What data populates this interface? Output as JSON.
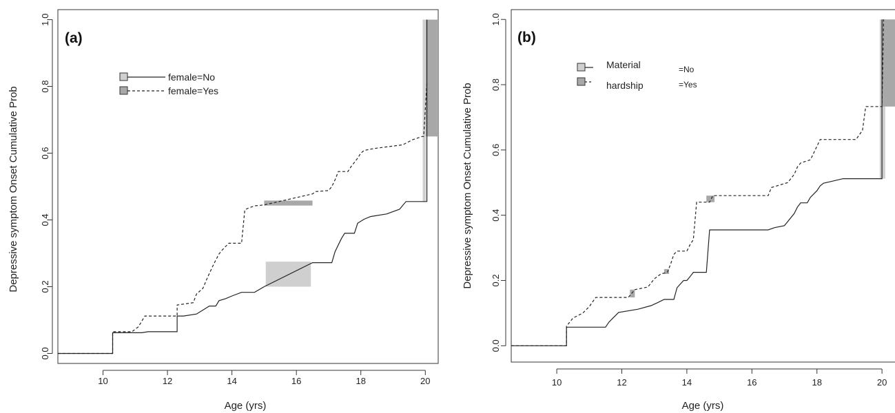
{
  "chart_data": [
    {
      "type": "line",
      "panel_label": "(a)",
      "xlabel": "Age (yrs)",
      "ylabel": "Depressive symptom Onset Cumulative Prob",
      "xlim": [
        8.6,
        20.4
      ],
      "ylim": [
        -0.03,
        1.03
      ],
      "xticks": [
        10,
        12,
        14,
        16,
        18,
        20
      ],
      "yticks": [
        0.0,
        0.2,
        0.4,
        0.6,
        0.8,
        1.0
      ],
      "ytick_labels": [
        "0.0",
        "0.2",
        "0.4",
        "0.6",
        "0.8",
        "1.0"
      ],
      "legend": {
        "placement": "top-left",
        "labels": [
          "female=No",
          "female=Yes"
        ]
      },
      "colors": {
        "ci_no": "#cfcfcf",
        "ci_yes": "#a8a8a8",
        "line": "#222222"
      },
      "series": [
        {
          "name": "female=No",
          "style": "solid",
          "x": [
            8.6,
            10.3,
            10.3,
            11.2,
            11.4,
            12.3,
            12.3,
            12.5,
            12.9,
            13.3,
            13.5,
            13.6,
            13.8,
            14.0,
            14.3,
            14.7,
            15.0,
            16.5,
            17.1,
            17.2,
            17.4,
            17.5,
            17.8,
            17.9,
            18.1,
            18.3,
            18.8,
            19.2,
            19.4,
            19.9,
            20.05,
            20.05
          ],
          "y": [
            0.0,
            0.0,
            0.062,
            0.062,
            0.065,
            0.065,
            0.112,
            0.112,
            0.118,
            0.142,
            0.142,
            0.158,
            0.164,
            0.172,
            0.183,
            0.183,
            0.2,
            0.272,
            0.272,
            0.305,
            0.345,
            0.36,
            0.36,
            0.39,
            0.402,
            0.41,
            0.418,
            0.432,
            0.455,
            0.455,
            0.455,
            1.0
          ]
        },
        {
          "name": "female=Yes",
          "style": "dashed",
          "x": [
            8.6,
            10.3,
            10.3,
            10.9,
            11.1,
            11.3,
            12.3,
            12.3,
            12.8,
            12.9,
            13.1,
            13.2,
            13.3,
            13.4,
            13.5,
            13.6,
            13.7,
            13.9,
            14.3,
            14.4,
            14.5,
            14.7,
            15.0,
            16.5,
            16.6,
            17.0,
            17.1,
            17.2,
            17.3,
            17.6,
            17.7,
            17.9,
            18.0,
            18.1,
            18.3,
            18.5,
            19.3,
            19.6,
            19.9,
            19.95,
            20.05
          ],
          "y": [
            0.0,
            0.0,
            0.065,
            0.065,
            0.08,
            0.112,
            0.112,
            0.145,
            0.152,
            0.178,
            0.195,
            0.218,
            0.24,
            0.26,
            0.28,
            0.298,
            0.31,
            0.33,
            0.33,
            0.43,
            0.435,
            0.442,
            0.445,
            0.478,
            0.485,
            0.488,
            0.5,
            0.52,
            0.545,
            0.545,
            0.56,
            0.585,
            0.6,
            0.608,
            0.612,
            0.615,
            0.625,
            0.64,
            0.65,
            0.65,
            0.81
          ]
        }
      ],
      "ci_bands": [
        {
          "series": "female=No",
          "x0": 15.05,
          "x1": 16.45,
          "y0": 0.2,
          "y1": 0.275
        },
        {
          "series": "female=Yes",
          "x0": 15.0,
          "x1": 16.5,
          "y0": 0.443,
          "y1": 0.458
        },
        {
          "series": "female=Yes",
          "x0": 19.92,
          "x1": 20.4,
          "y0": 0.65,
          "y1": 1.0
        },
        {
          "series": "female=No",
          "x0": 19.92,
          "x1": 20.02,
          "y0": 0.455,
          "y1": 1.0
        }
      ]
    },
    {
      "type": "line",
      "panel_label": "(b)",
      "xlabel": "Age (yrs)",
      "ylabel": "Depressive symptom Onset Cumulative Prob",
      "xlim": [
        8.6,
        20.4
      ],
      "ylim": [
        -0.05,
        1.03
      ],
      "xticks": [
        10,
        12,
        14,
        16,
        18,
        20
      ],
      "yticks": [
        0.0,
        0.2,
        0.4,
        0.6,
        0.8,
        1.0
      ],
      "ytick_labels": [
        "0.0",
        "0.2",
        "0.4",
        "0.6",
        "0.8",
        "1.0"
      ],
      "legend": {
        "placement": "top-left",
        "title_lines": [
          "Material",
          "hardship"
        ],
        "labels": [
          "=No",
          "=Yes"
        ]
      },
      "colors": {
        "ci_no": "#cfcfcf",
        "ci_yes": "#a8a8a8",
        "line": "#222222"
      },
      "series": [
        {
          "name": "=No",
          "style": "solid",
          "x": [
            8.6,
            10.3,
            10.3,
            11.5,
            11.6,
            11.9,
            12.5,
            12.9,
            13.1,
            13.3,
            13.6,
            13.7,
            13.9,
            14.0,
            14.1,
            14.2,
            14.6,
            14.7,
            16.5,
            16.7,
            17.0,
            17.3,
            17.4,
            17.5,
            17.7,
            17.8,
            18.0,
            18.1,
            18.2,
            18.5,
            18.8,
            19.9,
            20.0,
            20.0
          ],
          "y": [
            0.0,
            0.0,
            0.057,
            0.057,
            0.072,
            0.102,
            0.112,
            0.123,
            0.132,
            0.142,
            0.142,
            0.178,
            0.2,
            0.2,
            0.212,
            0.225,
            0.225,
            0.355,
            0.355,
            0.362,
            0.368,
            0.405,
            0.425,
            0.438,
            0.438,
            0.455,
            0.475,
            0.49,
            0.498,
            0.505,
            0.512,
            0.512,
            0.512,
            1.0
          ]
        },
        {
          "name": "=Yes",
          "style": "dashed",
          "x": [
            8.6,
            10.3,
            10.3,
            10.5,
            10.8,
            11.0,
            11.2,
            12.2,
            12.4,
            12.8,
            13.0,
            13.2,
            13.4,
            13.5,
            13.6,
            13.7,
            14.0,
            14.1,
            14.2,
            14.3,
            14.7,
            14.8,
            16.5,
            16.6,
            17.1,
            17.3,
            17.4,
            17.5,
            17.8,
            18.1,
            19.2,
            19.4,
            19.5,
            19.9,
            20.0,
            20.05
          ],
          "y": [
            0.0,
            0.0,
            0.06,
            0.085,
            0.1,
            0.12,
            0.148,
            0.148,
            0.172,
            0.18,
            0.205,
            0.22,
            0.225,
            0.25,
            0.28,
            0.29,
            0.29,
            0.31,
            0.325,
            0.44,
            0.44,
            0.46,
            0.46,
            0.485,
            0.5,
            0.525,
            0.548,
            0.56,
            0.57,
            0.632,
            0.632,
            0.66,
            0.733,
            0.733,
            0.733,
            1.0
          ]
        }
      ],
      "ci_bands": [
        {
          "series": "=No",
          "x0": 19.93,
          "x1": 20.1,
          "y0": 0.512,
          "y1": 1.0
        },
        {
          "series": "=Yes",
          "x0": 20.0,
          "x1": 20.4,
          "y0": 0.733,
          "y1": 1.0
        },
        {
          "series": "=Yes",
          "x0": 14.6,
          "x1": 14.85,
          "y0": 0.44,
          "y1": 0.46
        },
        {
          "series": "=Yes",
          "x0": 12.25,
          "x1": 12.4,
          "y0": 0.148,
          "y1": 0.172
        },
        {
          "series": "=Yes",
          "x0": 13.3,
          "x1": 13.45,
          "y0": 0.22,
          "y1": 0.235
        }
      ]
    }
  ]
}
